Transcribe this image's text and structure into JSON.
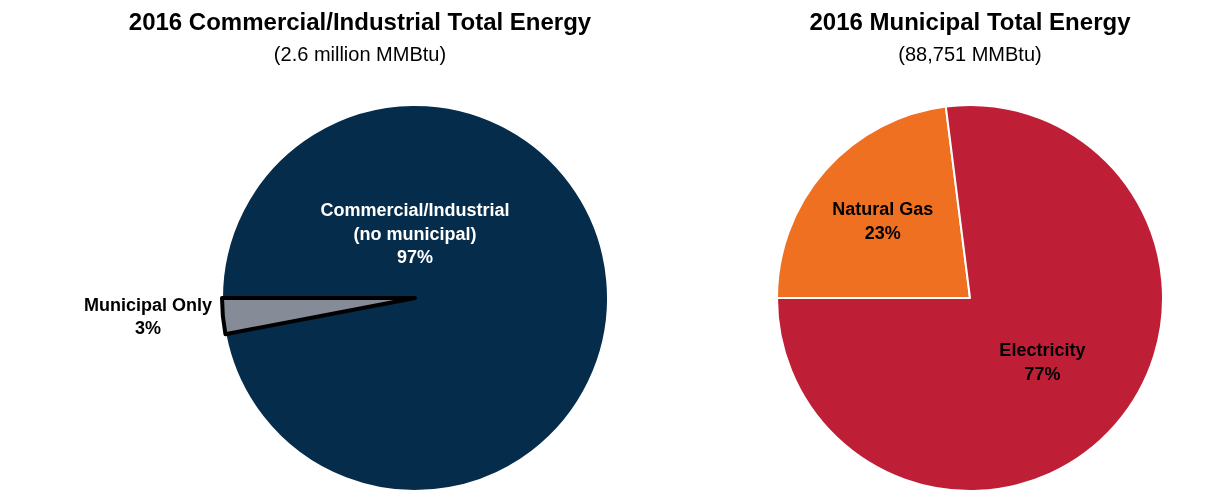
{
  "chart_data": [
    {
      "type": "pie",
      "title": "2016 Commercial/Industrial Total Energy",
      "subtitle": "(2.6 million MMBtu)",
      "categories": [
        "Commercial/Industrial\n(no municipal)",
        "Municipal Only"
      ],
      "values": [
        97,
        3
      ],
      "value_labels": [
        "97%",
        "3%"
      ],
      "colors": [
        "#052c4b",
        "#858c97"
      ],
      "legend": false
    },
    {
      "type": "pie",
      "title": "2016 Municipal Total Energy",
      "subtitle": "(88,751 MMBtu)",
      "categories": [
        "Natural Gas",
        "Electricity"
      ],
      "values": [
        23,
        77
      ],
      "value_labels": [
        "23%",
        "77%"
      ],
      "colors": [
        "#f07022",
        "#be1f36"
      ],
      "legend": false
    }
  ]
}
